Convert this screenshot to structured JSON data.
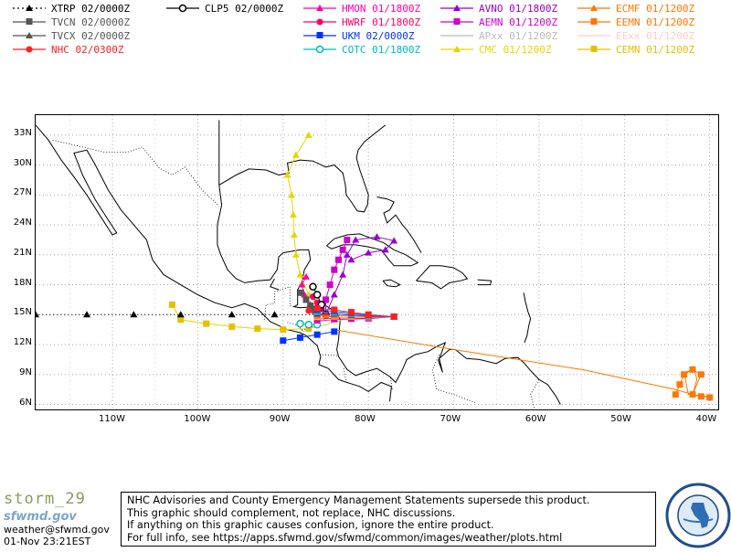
{
  "legend": [
    {
      "id": "xtrp",
      "label": "XTRP 02/0000Z",
      "color": "#000000",
      "marker": "triangle",
      "dashed": true
    },
    {
      "id": "tvcn",
      "label": "TVCN 02/0000Z",
      "color": "#555555",
      "marker": "square",
      "dashed": false
    },
    {
      "id": "tvcx",
      "label": "TVCX 02/0000Z",
      "color": "#555555",
      "marker": "triangle",
      "dashed": false
    },
    {
      "id": "nhc",
      "label": "NHC 02/0300Z",
      "color": "#ff2020",
      "marker": "circle",
      "dashed": false
    },
    {
      "id": "clp5",
      "label": "CLP5 02/0000Z",
      "color": "#000000",
      "marker": "ring",
      "dashed": false
    },
    {
      "id": "hmon",
      "label": "HMON 01/1800Z",
      "color": "#ff00aa",
      "marker": "triangle",
      "dashed": false
    },
    {
      "id": "hwrf",
      "label": "HWRF 01/1800Z",
      "color": "#ff0066",
      "marker": "circle",
      "dashed": false
    },
    {
      "id": "ukm",
      "label": "UKM 02/0000Z",
      "color": "#0033ff",
      "marker": "square",
      "dashed": false
    },
    {
      "id": "cotc",
      "label": "COTC 01/1800Z",
      "color": "#00bbbb",
      "marker": "ring",
      "dashed": false
    },
    {
      "id": "avno",
      "label": "AVNO 01/1800Z",
      "color": "#9900cc",
      "marker": "triangle",
      "dashed": false
    },
    {
      "id": "aemn",
      "label": "AEMN 01/1200Z",
      "color": "#cc00cc",
      "marker": "square",
      "dashed": false
    },
    {
      "id": "apxx",
      "label": "APxx 01/1200Z",
      "color": "#bbbbbb",
      "marker": "none",
      "dashed": false
    },
    {
      "id": "cmc",
      "label": "CMC 01/1200Z",
      "color": "#e6d600",
      "marker": "triangle",
      "dashed": false
    },
    {
      "id": "ecmf",
      "label": "ECMF 01/1200Z",
      "color": "#ff7700",
      "marker": "triangle",
      "dashed": false
    },
    {
      "id": "eemn",
      "label": "EEMN 01/1200Z",
      "color": "#ff7700",
      "marker": "square",
      "dashed": false
    },
    {
      "id": "eexx",
      "label": "EExx 01/1200Z",
      "color": "#ffcccc",
      "marker": "none",
      "dashed": false
    },
    {
      "id": "cemn",
      "label": "CEMN 01/1200Z",
      "color": "#e6c000",
      "marker": "square",
      "dashed": false
    }
  ],
  "map": {
    "lat_labels": [
      "33N",
      "30N",
      "27N",
      "24N",
      "21N",
      "18N",
      "15N",
      "12N",
      "9N",
      "6N"
    ],
    "lon_labels": [
      "110W",
      "100W",
      "90W",
      "80W",
      "70W",
      "60W",
      "50W",
      "40W"
    ],
    "lon_values": [
      -110,
      -100,
      -90,
      -80,
      -70,
      -60,
      -50,
      -40
    ],
    "lat_values": [
      33,
      30,
      27,
      24,
      21,
      18,
      15,
      12,
      9,
      6
    ],
    "lon_range": [
      -119,
      -39
    ],
    "lat_range": [
      5.5,
      35
    ]
  },
  "tracks": {
    "xtrp": [
      [
        -86,
        15
      ],
      [
        -91,
        15
      ],
      [
        -96,
        15
      ],
      [
        -102,
        15
      ],
      [
        -107.5,
        15
      ],
      [
        -113,
        15
      ],
      [
        -119,
        15
      ]
    ],
    "tvcn": [
      [
        -86,
        15
      ],
      [
        -86.3,
        15.4
      ],
      [
        -86.8,
        15.9
      ],
      [
        -87.3,
        16.5
      ],
      [
        -87.9,
        17.2
      ]
    ],
    "cmc_west": [
      [
        -83,
        14.5
      ],
      [
        -85,
        14
      ],
      [
        -87,
        13.6
      ],
      [
        -90,
        13.5
      ],
      [
        -93,
        13.6
      ],
      [
        -96,
        13.8
      ],
      [
        -99,
        14.1
      ],
      [
        -102,
        14.5
      ],
      [
        -103,
        16
      ]
    ],
    "cmc_north": [
      [
        -84,
        14.5
      ],
      [
        -85.5,
        15.5
      ],
      [
        -87,
        17
      ],
      [
        -88,
        19
      ],
      [
        -88.5,
        21
      ],
      [
        -88.7,
        23
      ],
      [
        -88.8,
        25
      ],
      [
        -89,
        27
      ],
      [
        -89.5,
        29
      ],
      [
        -88.5,
        31
      ],
      [
        -87,
        33
      ]
    ],
    "ecmf": [
      [
        -84,
        13.5
      ],
      [
        -70,
        11.5
      ],
      [
        -55,
        9.5
      ],
      [
        -44,
        7.5
      ],
      [
        -42,
        7
      ],
      [
        -41.5,
        8.5
      ],
      [
        -41.8,
        9.5
      ],
      [
        -43,
        9.2
      ],
      [
        -42.5,
        7
      ],
      [
        -41,
        6.8
      ],
      [
        -40,
        6.8
      ]
    ],
    "eemn": [
      [
        -44,
        7
      ],
      [
        -43.5,
        8
      ],
      [
        -43,
        9
      ],
      [
        -42,
        9.5
      ],
      [
        -41,
        9
      ],
      [
        -42,
        7
      ],
      [
        -41,
        6.8
      ],
      [
        -40,
        6.7
      ]
    ],
    "avno": [
      [
        -85,
        15
      ],
      [
        -84,
        17
      ],
      [
        -83,
        19
      ],
      [
        -82.5,
        21
      ],
      [
        -81.5,
        22.5
      ],
      [
        -79,
        22.8
      ],
      [
        -77,
        22.4
      ],
      [
        -78,
        21.5
      ],
      [
        -80,
        21.2
      ],
      [
        -82,
        20.5
      ]
    ],
    "aemn": [
      [
        -85,
        15
      ],
      [
        -85,
        16.5
      ],
      [
        -84.5,
        18
      ],
      [
        -84,
        19.5
      ],
      [
        -83.5,
        20.5
      ],
      [
        -83,
        21.5
      ],
      [
        -82.5,
        22.5
      ]
    ],
    "hmon": [
      [
        -86,
        15
      ],
      [
        -86.8,
        16
      ],
      [
        -87.5,
        17
      ],
      [
        -87.8,
        18
      ],
      [
        -87.3,
        18.8
      ]
    ],
    "hwrf": [
      [
        -85,
        15
      ],
      [
        -85.5,
        15.6
      ],
      [
        -86,
        16.2
      ],
      [
        -86.5,
        16.8
      ]
    ],
    "ukm": [
      [
        -84,
        13.3
      ],
      [
        -86,
        13
      ],
      [
        -88,
        12.7
      ],
      [
        -90,
        12.4
      ]
    ],
    "cotc": [
      [
        -86,
        14
      ],
      [
        -87,
        14
      ],
      [
        -88,
        14.1
      ]
    ],
    "nhc": [
      [
        -84,
        14.7
      ],
      [
        -85,
        14.9
      ],
      [
        -86,
        15.1
      ],
      [
        -87,
        15.4
      ]
    ],
    "clp5": [
      [
        -85,
        15
      ],
      [
        -85.5,
        16
      ],
      [
        -86,
        17
      ],
      [
        -86.5,
        17.8
      ]
    ],
    "cluster": [
      [
        -77,
        14.8
      ],
      [
        -80,
        14.8
      ],
      [
        -82,
        14.9
      ],
      [
        -84,
        15
      ],
      [
        -86,
        15
      ]
    ]
  },
  "footer": {
    "storm_name": "storm_29",
    "org_logo_text": "sfwmd.gov",
    "email": "weather@sfwmd.gov",
    "timestamp": "01-Nov 23:21EST",
    "disclaimer_lines": [
      "NHC Advisories and County Emergency Management Statements supersede this product.",
      "This graphic should complement, not replace, NHC discussions.",
      "If anything on this graphic causes confusion, ignore the entire product.",
      "For full info, see  https://apps.sfwmd.gov/sfwmd/common/images/weather/plots.html"
    ],
    "seal_text": "SOUTH FLORIDA WATER MANAGEMENT DISTRICT"
  }
}
